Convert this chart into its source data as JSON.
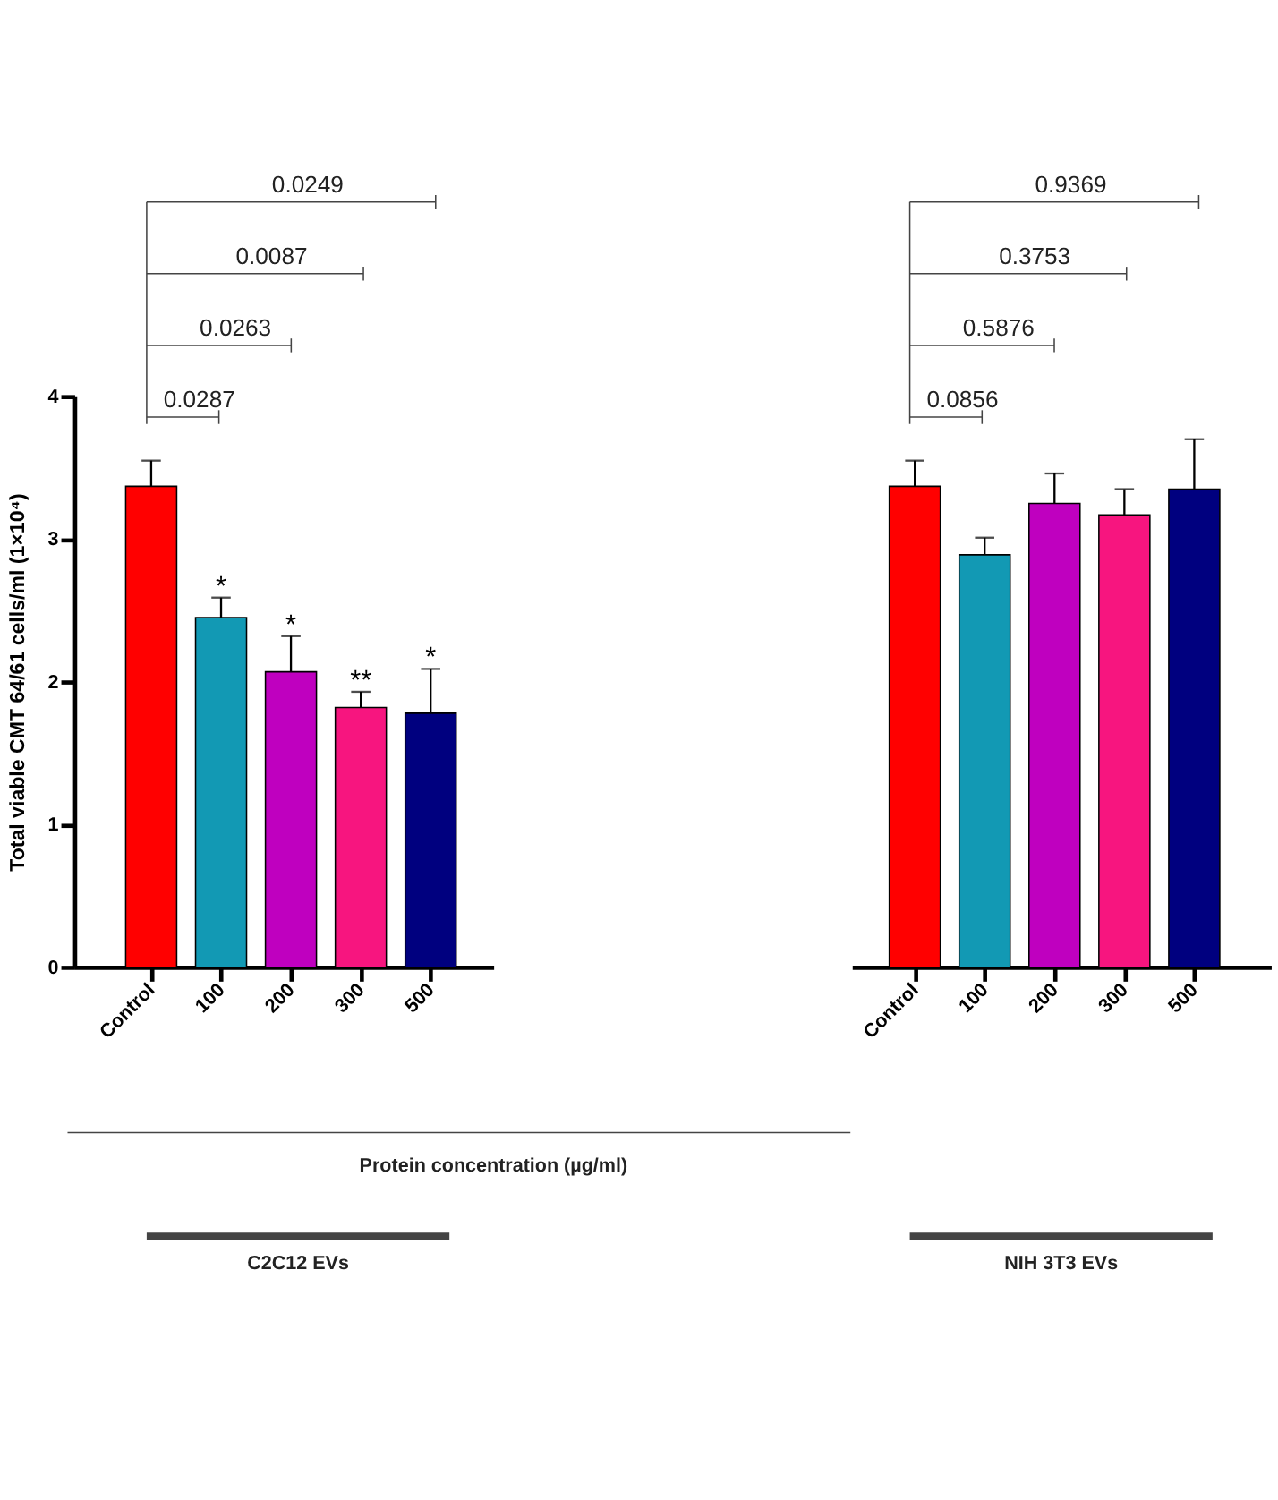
{
  "chart_data": [
    {
      "type": "bar",
      "categories": [
        "Control",
        "100",
        "200",
        "300",
        "500"
      ],
      "values": [
        3.37,
        2.45,
        2.07,
        1.82,
        1.78
      ],
      "errors": [
        0.18,
        0.14,
        0.25,
        0.11,
        0.31
      ],
      "colors": [
        "#ff0000",
        "#1299b4",
        "#bf00bf",
        "#f7157f",
        "#00007f"
      ],
      "value_labels": [
        null,
        "*",
        "*",
        "**",
        "*"
      ],
      "ylim": [
        0,
        4
      ],
      "yticks": [
        0,
        1,
        2,
        3,
        4
      ],
      "ylabel": "Total viable CMT 64/61 cells/ml (1×10⁴)",
      "annotations": [
        "0.0287",
        "0.0263",
        "0.0087",
        "0.0249",
        "C2C12 EVs",
        "Protein concentration (µg/ml)"
      ]
    },
    {
      "type": "bar",
      "categories": [
        "Control",
        "100",
        "200",
        "300",
        "500"
      ],
      "values": [
        3.37,
        2.89,
        3.25,
        3.17,
        3.35
      ],
      "errors": [
        0.18,
        0.12,
        0.21,
        0.18,
        0.35
      ],
      "colors": [
        "#ff0000",
        "#1299b4",
        "#bf00bf",
        "#f7157f",
        "#00007f"
      ],
      "ylim": [
        0,
        4
      ],
      "tick_labels": "x",
      "annotations": [
        "0.0856",
        "0.5876",
        "0.3753",
        "0.9369",
        "NIH 3T3 EVs"
      ]
    }
  ]
}
